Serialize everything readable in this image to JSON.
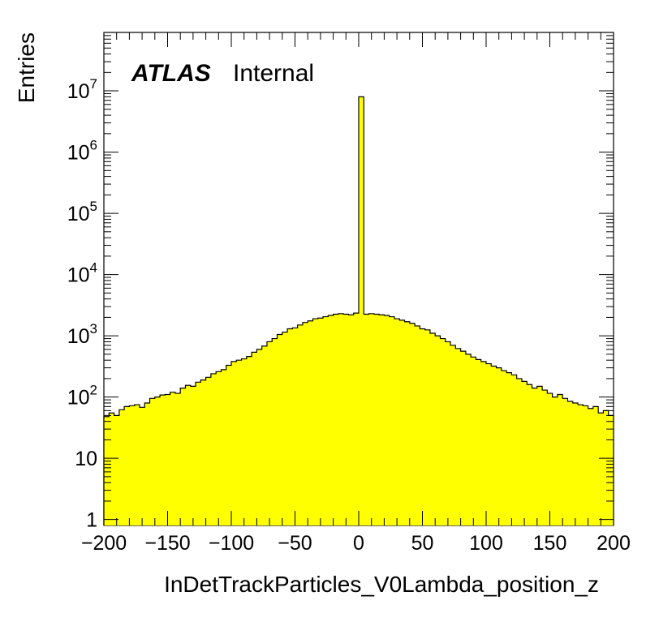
{
  "chart_data": {
    "type": "bar",
    "style": "histogram-step-filled",
    "fill_color": "#ffff00",
    "line_color": "#000000",
    "xlabel": "InDetTrackParticles_V0Lambda_position_z",
    "ylabel": "Entries",
    "xlim": [
      -200,
      200
    ],
    "ylim": [
      0.8,
      90000000
    ],
    "log_y": true,
    "x_ticks": [
      "−200",
      "−150",
      "−100",
      "−50",
      "0",
      "50",
      "100",
      "150",
      "200"
    ],
    "y_ticks": [
      {
        "base": "1",
        "exp": ""
      },
      {
        "base": "10",
        "exp": ""
      },
      {
        "base": "10",
        "exp": "2"
      },
      {
        "base": "10",
        "exp": "3"
      },
      {
        "base": "10",
        "exp": "4"
      },
      {
        "base": "10",
        "exp": "5"
      },
      {
        "base": "10",
        "exp": "6"
      },
      {
        "base": "10",
        "exp": "7"
      }
    ],
    "bin_edges_start": -200,
    "bin_width": 4,
    "values": [
      48,
      55,
      50,
      62,
      70,
      72,
      75,
      68,
      80,
      95,
      100,
      108,
      110,
      120,
      115,
      140,
      155,
      150,
      175,
      190,
      210,
      240,
      260,
      280,
      330,
      380,
      400,
      420,
      460,
      540,
      600,
      680,
      800,
      900,
      1050,
      1150,
      1300,
      1350,
      1500,
      1650,
      1750,
      1900,
      1950,
      2050,
      2150,
      2250,
      2300,
      2250,
      2200,
      2350,
      8000000,
      2250,
      2300,
      2250,
      2200,
      2150,
      2050,
      1900,
      1800,
      1700,
      1600,
      1450,
      1300,
      1250,
      1100,
      1000,
      900,
      800,
      700,
      620,
      560,
      500,
      450,
      410,
      380,
      350,
      320,
      300,
      270,
      250,
      230,
      200,
      180,
      160,
      140,
      150,
      130,
      115,
      100,
      110,
      95,
      85,
      80,
      75,
      72,
      65,
      70,
      55,
      60,
      50
    ],
    "annotations": [
      {
        "text": "ATLAS",
        "style": "bold-italic"
      },
      {
        "text": "Internal",
        "style": "normal"
      }
    ]
  }
}
